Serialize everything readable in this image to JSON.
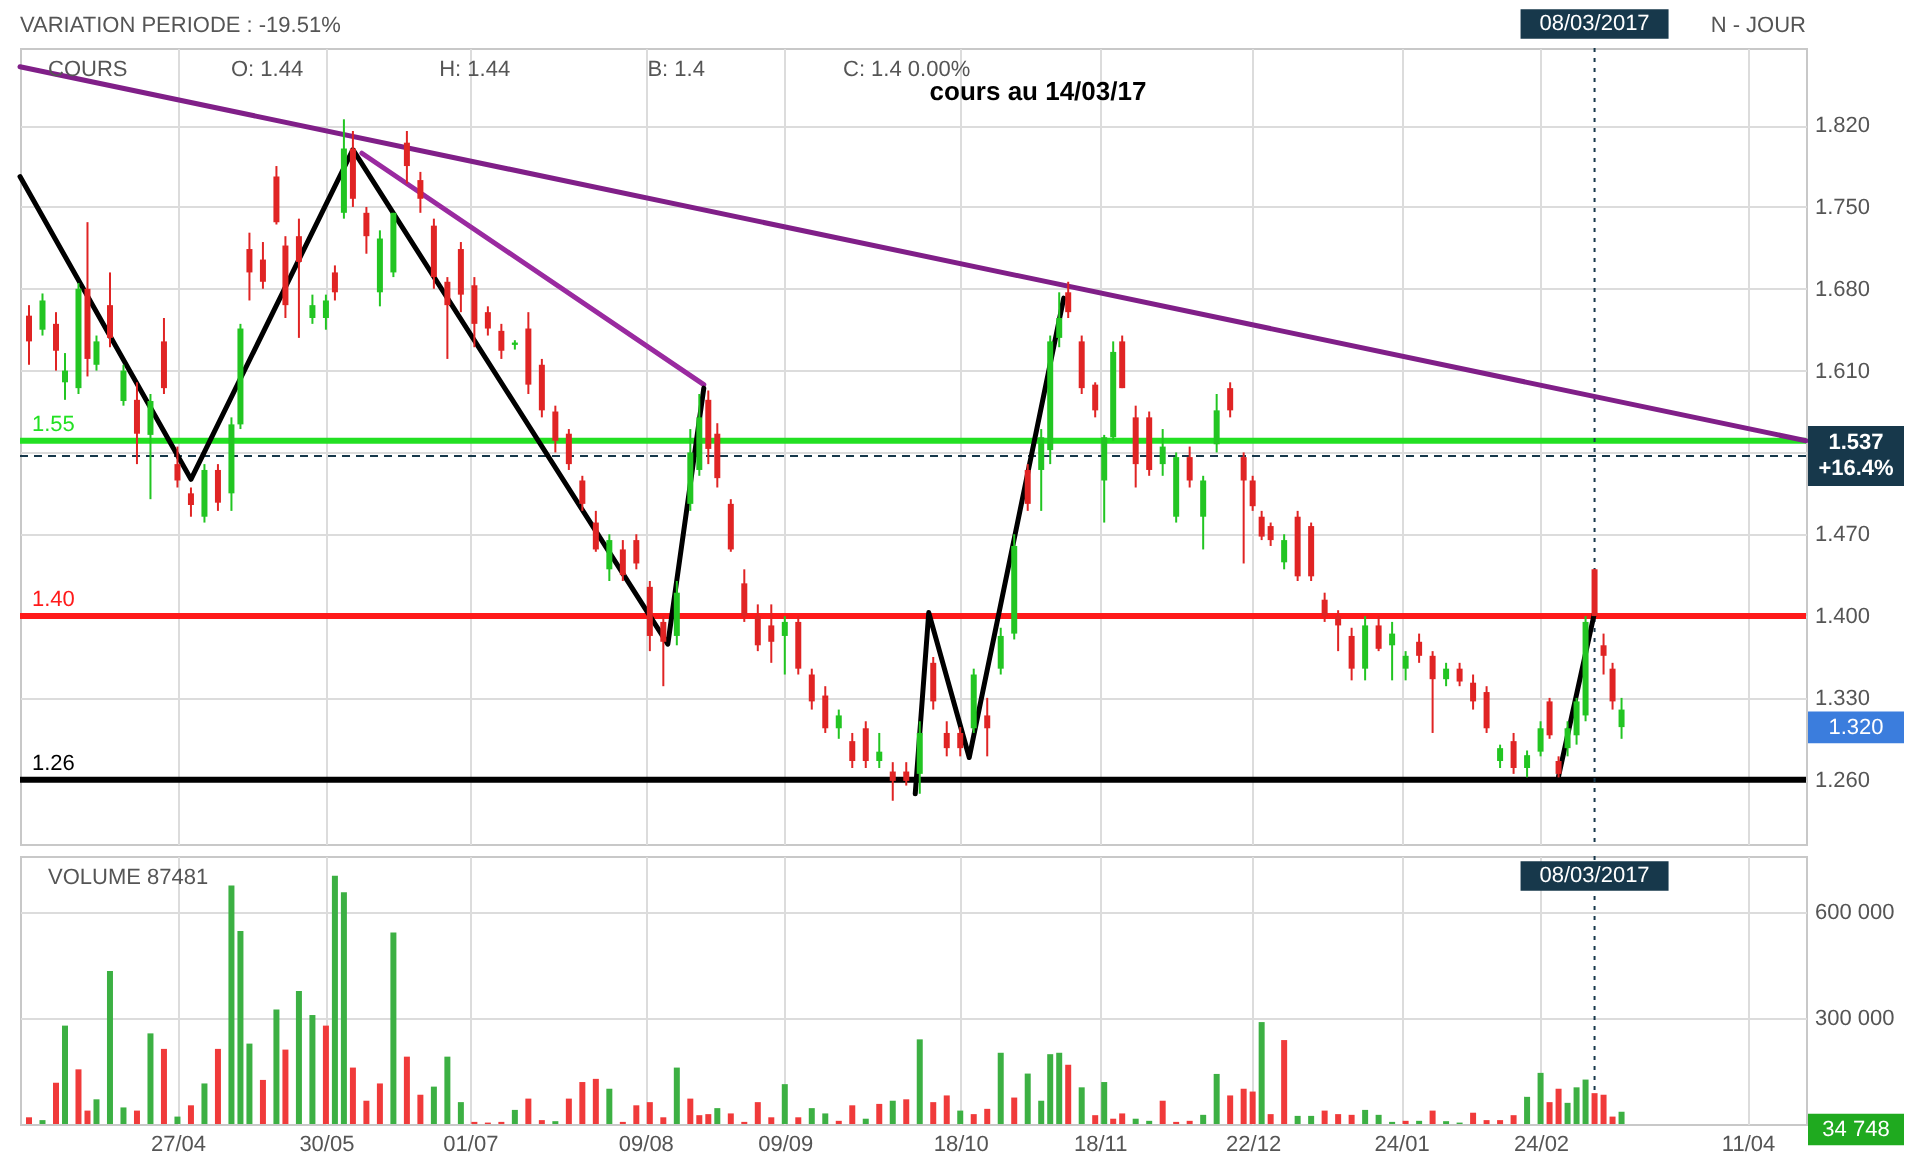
{
  "chart_data": [
    {
      "type": "candlestick",
      "title": "cours au 14/03/17",
      "annotations": [
        "VARIATION PERIODE : -19.51%",
        "COURS",
        "O: 1.44",
        "H: 1.44",
        "B: 1.4",
        "C: 1.4 0.00%",
        "N - JOUR",
        "1.320"
      ],
      "x": [
        "2016-03-25",
        "2016-03-28",
        "2016-03-31",
        "2016-04-02",
        "2016-04-05",
        "2016-04-07",
        "2016-04-09",
        "2016-04-12",
        "2016-04-15",
        "2016-04-18",
        "2016-04-21",
        "2016-04-24",
        "2016-04-27",
        "2016-04-30",
        "2016-05-03",
        "2016-05-06",
        "2016-05-09",
        "2016-05-11",
        "2016-05-13",
        "2016-05-16",
        "2016-05-19",
        "2016-05-21",
        "2016-05-24",
        "2016-05-27",
        "2016-05-30",
        "2016-06-01",
        "2016-06-03",
        "2016-06-05",
        "2016-06-08",
        "2016-06-11",
        "2016-06-14",
        "2016-06-17",
        "2016-06-20",
        "2016-06-23",
        "2016-06-26",
        "2016-06-29",
        "2016-07-02",
        "2016-07-05",
        "2016-07-08",
        "2016-07-11",
        "2016-07-14",
        "2016-07-17",
        "2016-07-20",
        "2016-07-23",
        "2016-07-26",
        "2016-07-29",
        "2016-08-01",
        "2016-08-04",
        "2016-08-07",
        "2016-08-10",
        "2016-08-13",
        "2016-08-16",
        "2016-08-19",
        "2016-08-21",
        "2016-08-23",
        "2016-08-25",
        "2016-08-28",
        "2016-08-31",
        "2016-09-03",
        "2016-09-06",
        "2016-09-09",
        "2016-09-12",
        "2016-09-15",
        "2016-09-18",
        "2016-09-21",
        "2016-09-24",
        "2016-09-27",
        "2016-09-30",
        "2016-10-03",
        "2016-10-06",
        "2016-10-09",
        "2016-10-12",
        "2016-10-15",
        "2016-10-18",
        "2016-10-21",
        "2016-10-24",
        "2016-10-27",
        "2016-10-30",
        "2016-11-02",
        "2016-11-05",
        "2016-11-07",
        "2016-11-09",
        "2016-11-11",
        "2016-11-14",
        "2016-11-17",
        "2016-11-19",
        "2016-11-21",
        "2016-11-23",
        "2016-11-26",
        "2016-11-29",
        "2016-12-02",
        "2016-12-05",
        "2016-12-08",
        "2016-12-11",
        "2016-12-14",
        "2016-12-17",
        "2016-12-20",
        "2016-12-22",
        "2016-12-24",
        "2016-12-26",
        "2016-12-29",
        "2017-01-01",
        "2017-01-04",
        "2017-01-07",
        "2017-01-10",
        "2017-01-13",
        "2017-01-16",
        "2017-01-19",
        "2017-01-22",
        "2017-01-25",
        "2017-01-28",
        "2017-01-31",
        "2017-02-03",
        "2017-02-06",
        "2017-02-09",
        "2017-02-12",
        "2017-02-15",
        "2017-02-18",
        "2017-02-21",
        "2017-02-24",
        "2017-02-26",
        "2017-02-28",
        "2017-03-02",
        "2017-03-04",
        "2017-03-06",
        "2017-03-08",
        "2017-03-10",
        "2017-03-12",
        "2017-03-14"
      ],
      "ohlc": [
        [
          1.657,
          1.666,
          1.615,
          1.635
        ],
        [
          1.645,
          1.676,
          1.64,
          1.67
        ],
        [
          1.65,
          1.66,
          1.61,
          1.627
        ],
        [
          1.6,
          1.625,
          1.585,
          1.61
        ],
        [
          1.595,
          1.685,
          1.59,
          1.68
        ],
        [
          1.68,
          1.737,
          1.605,
          1.62
        ],
        [
          1.615,
          1.64,
          1.61,
          1.635
        ],
        [
          1.666,
          1.694,
          1.63,
          1.638
        ],
        [
          1.584,
          1.615,
          1.58,
          1.61
        ],
        [
          1.585,
          1.6,
          1.53,
          1.556
        ],
        [
          1.555,
          1.59,
          1.5,
          1.584
        ],
        [
          1.635,
          1.655,
          1.59,
          1.595
        ],
        [
          1.53,
          1.545,
          1.51,
          1.516
        ],
        [
          1.505,
          1.51,
          1.485,
          1.495
        ],
        [
          1.485,
          1.53,
          1.48,
          1.525
        ],
        [
          1.525,
          1.53,
          1.49,
          1.497
        ],
        [
          1.505,
          1.57,
          1.49,
          1.564
        ],
        [
          1.564,
          1.65,
          1.56,
          1.646
        ],
        [
          1.714,
          1.728,
          1.67,
          1.694
        ],
        [
          1.705,
          1.72,
          1.68,
          1.686
        ],
        [
          1.776,
          1.785,
          1.735,
          1.737
        ],
        [
          1.717,
          1.725,
          1.655,
          1.666
        ],
        [
          1.725,
          1.74,
          1.638,
          1.703
        ],
        [
          1.655,
          1.675,
          1.65,
          1.666
        ],
        [
          1.655,
          1.675,
          1.645,
          1.67
        ],
        [
          1.694,
          1.7,
          1.67,
          1.677
        ],
        [
          1.745,
          1.825,
          1.74,
          1.8
        ],
        [
          1.8,
          1.815,
          1.75,
          1.757
        ],
        [
          1.745,
          1.75,
          1.71,
          1.725
        ],
        [
          1.677,
          1.73,
          1.665,
          1.723
        ],
        [
          1.694,
          1.745,
          1.69,
          1.745
        ],
        [
          1.805,
          1.815,
          1.77,
          1.785
        ],
        [
          1.773,
          1.78,
          1.745,
          1.757
        ],
        [
          1.734,
          1.74,
          1.68,
          1.69
        ],
        [
          1.686,
          1.69,
          1.62,
          1.666
        ],
        [
          1.714,
          1.72,
          1.66,
          1.675
        ],
        [
          1.683,
          1.69,
          1.63,
          1.65
        ],
        [
          1.66,
          1.665,
          1.64,
          1.646
        ],
        [
          1.644,
          1.65,
          1.62,
          1.627
        ],
        [
          1.632,
          1.636,
          1.628,
          1.634
        ],
        [
          1.646,
          1.66,
          1.59,
          1.598
        ],
        [
          1.615,
          1.62,
          1.57,
          1.576
        ],
        [
          1.575,
          1.58,
          1.54,
          1.55
        ],
        [
          1.556,
          1.56,
          1.525,
          1.53
        ],
        [
          1.516,
          1.52,
          1.49,
          1.496
        ],
        [
          1.48,
          1.49,
          1.455,
          1.457
        ],
        [
          1.44,
          1.47,
          1.43,
          1.465
        ],
        [
          1.457,
          1.465,
          1.43,
          1.435
        ],
        [
          1.465,
          1.47,
          1.44,
          1.445
        ],
        [
          1.425,
          1.43,
          1.37,
          1.383
        ],
        [
          1.395,
          1.4,
          1.34,
          1.378
        ],
        [
          1.383,
          1.43,
          1.375,
          1.42
        ],
        [
          1.496,
          1.56,
          1.49,
          1.54
        ],
        [
          1.525,
          1.59,
          1.52,
          1.57
        ],
        [
          1.585,
          1.593,
          1.53,
          1.543
        ],
        [
          1.556,
          1.565,
          1.51,
          1.518
        ],
        [
          1.496,
          1.5,
          1.455,
          1.457
        ],
        [
          1.428,
          1.44,
          1.395,
          1.4
        ],
        [
          1.4,
          1.41,
          1.37,
          1.375
        ],
        [
          1.392,
          1.41,
          1.36,
          1.378
        ],
        [
          1.383,
          1.4,
          1.35,
          1.395
        ],
        [
          1.395,
          1.4,
          1.35,
          1.355
        ],
        [
          1.35,
          1.355,
          1.32,
          1.327
        ],
        [
          1.332,
          1.34,
          1.3,
          1.304
        ],
        [
          1.304,
          1.32,
          1.295,
          1.315
        ],
        [
          1.293,
          1.3,
          1.27,
          1.276
        ],
        [
          1.304,
          1.31,
          1.27,
          1.276
        ],
        [
          1.276,
          1.3,
          1.27,
          1.284
        ],
        [
          1.267,
          1.275,
          1.242,
          1.259
        ],
        [
          1.267,
          1.275,
          1.255,
          1.259
        ],
        [
          1.265,
          1.31,
          1.248,
          1.3
        ],
        [
          1.36,
          1.365,
          1.32,
          1.327
        ],
        [
          1.3,
          1.31,
          1.28,
          1.287
        ],
        [
          1.3,
          1.305,
          1.28,
          1.287
        ],
        [
          1.304,
          1.355,
          1.3,
          1.35
        ],
        [
          1.315,
          1.33,
          1.28,
          1.304
        ],
        [
          1.355,
          1.39,
          1.35,
          1.383
        ],
        [
          1.385,
          1.47,
          1.38,
          1.46
        ],
        [
          1.525,
          1.53,
          1.49,
          1.496
        ],
        [
          1.525,
          1.56,
          1.49,
          1.553
        ],
        [
          1.542,
          1.64,
          1.53,
          1.635
        ],
        [
          1.638,
          1.677,
          1.63,
          1.655
        ],
        [
          1.677,
          1.686,
          1.655,
          1.66
        ],
        [
          1.635,
          1.64,
          1.59,
          1.595
        ],
        [
          1.598,
          1.6,
          1.57,
          1.576
        ],
        [
          1.516,
          1.555,
          1.48,
          1.553
        ],
        [
          1.553,
          1.635,
          1.55,
          1.626
        ],
        [
          1.635,
          1.64,
          1.595,
          1.595
        ],
        [
          1.57,
          1.58,
          1.51,
          1.53
        ],
        [
          1.57,
          1.575,
          1.52,
          1.525
        ],
        [
          1.53,
          1.56,
          1.52,
          1.545
        ],
        [
          1.485,
          1.54,
          1.48,
          1.536
        ],
        [
          1.536,
          1.545,
          1.51,
          1.516
        ],
        [
          1.485,
          1.52,
          1.457,
          1.516
        ],
        [
          1.547,
          1.59,
          1.54,
          1.576
        ],
        [
          1.595,
          1.6,
          1.57,
          1.576
        ],
        [
          1.536,
          1.54,
          1.445,
          1.516
        ],
        [
          1.516,
          1.52,
          1.49,
          1.494
        ],
        [
          1.485,
          1.49,
          1.465,
          1.468
        ],
        [
          1.477,
          1.48,
          1.46,
          1.465
        ],
        [
          1.446,
          1.47,
          1.44,
          1.465
        ],
        [
          1.485,
          1.49,
          1.43,
          1.434
        ],
        [
          1.477,
          1.48,
          1.43,
          1.434
        ],
        [
          1.414,
          1.42,
          1.395,
          1.4
        ],
        [
          1.4,
          1.405,
          1.37,
          1.392
        ],
        [
          1.383,
          1.39,
          1.345,
          1.355
        ],
        [
          1.355,
          1.4,
          1.345,
          1.392
        ],
        [
          1.392,
          1.4,
          1.37,
          1.372
        ],
        [
          1.375,
          1.395,
          1.345,
          1.385
        ],
        [
          1.355,
          1.37,
          1.345,
          1.366
        ],
        [
          1.378,
          1.385,
          1.36,
          1.366
        ],
        [
          1.366,
          1.37,
          1.3,
          1.346
        ],
        [
          1.346,
          1.36,
          1.34,
          1.355
        ],
        [
          1.355,
          1.36,
          1.34,
          1.344
        ],
        [
          1.343,
          1.35,
          1.32,
          1.327
        ],
        [
          1.335,
          1.34,
          1.3,
          1.304
        ],
        [
          1.276,
          1.29,
          1.27,
          1.287
        ],
        [
          1.293,
          1.3,
          1.265,
          1.27
        ],
        [
          1.27,
          1.285,
          1.262,
          1.281
        ],
        [
          1.284,
          1.31,
          1.28,
          1.304
        ],
        [
          1.327,
          1.33,
          1.295,
          1.298
        ],
        [
          1.276,
          1.28,
          1.262,
          1.265
        ],
        [
          1.287,
          1.31,
          1.28,
          1.304
        ],
        [
          1.298,
          1.33,
          1.29,
          1.327
        ],
        [
          1.315,
          1.4,
          1.31,
          1.395
        ],
        [
          1.44,
          1.44,
          1.4,
          1.4
        ],
        [
          1.375,
          1.385,
          1.35,
          1.366
        ],
        [
          1.355,
          1.36,
          1.32,
          1.327
        ],
        [
          1.305,
          1.33,
          1.295,
          1.32
        ]
      ],
      "colors": [
        "#e02424",
        "#22c522",
        "#e02424",
        "#22c522",
        "#22c522",
        "#e02424",
        "#22c522",
        "#e02424",
        "#22c522",
        "#e02424",
        "#22c522",
        "#e02424",
        "#e02424",
        "#e02424",
        "#22c522",
        "#e02424",
        "#22c522",
        "#22c522",
        "#e02424",
        "#e02424",
        "#e02424",
        "#e02424",
        "#e02424",
        "#22c522",
        "#22c522",
        "#e02424",
        "#22c522",
        "#e02424",
        "#e02424",
        "#22c522",
        "#22c522",
        "#e02424",
        "#e02424",
        "#e02424",
        "#e02424",
        "#e02424",
        "#e02424",
        "#e02424",
        "#e02424",
        "#22c522",
        "#e02424",
        "#e02424",
        "#e02424",
        "#e02424",
        "#e02424",
        "#e02424",
        "#22c522",
        "#e02424",
        "#e02424",
        "#e02424",
        "#e02424",
        "#22c522",
        "#22c522",
        "#22c522",
        "#e02424",
        "#e02424",
        "#e02424",
        "#e02424",
        "#e02424",
        "#e02424",
        "#22c522",
        "#e02424",
        "#e02424",
        "#e02424",
        "#22c522",
        "#e02424",
        "#e02424",
        "#22c522",
        "#e02424",
        "#e02424",
        "#22c522",
        "#e02424",
        "#e02424",
        "#e02424",
        "#22c522",
        "#e02424",
        "#22c522",
        "#22c522",
        "#e02424",
        "#22c522",
        "#22c522",
        "#22c522",
        "#e02424",
        "#e02424",
        "#e02424",
        "#22c522",
        "#22c522",
        "#e02424",
        "#e02424",
        "#e02424",
        "#22c522",
        "#22c522",
        "#e02424",
        "#22c522",
        "#22c522",
        "#e02424",
        "#e02424",
        "#e02424",
        "#e02424",
        "#e02424",
        "#22c522",
        "#e02424",
        "#e02424",
        "#e02424",
        "#e02424",
        "#e02424",
        "#22c522",
        "#e02424",
        "#22c522",
        "#22c522",
        "#e02424",
        "#e02424",
        "#22c522",
        "#e02424",
        "#e02424",
        "#e02424",
        "#22c522",
        "#e02424",
        "#22c522",
        "#22c522",
        "#e02424",
        "#e02424",
        "#22c522",
        "#22c522",
        "#22c522",
        "#e02424",
        "#e02424",
        "#e02424",
        "#22c522"
      ],
      "xlim": [
        "2016-03-23",
        "2017-04-24"
      ],
      "xticks": [
        {
          "value": "2016-04-27",
          "label": null
        },
        {
          "value": "2016-05-30",
          "label": null
        },
        {
          "value": "2016-07-01",
          "label": null
        },
        {
          "value": "2016-08-09",
          "label": null
        },
        {
          "value": "2016-09-09",
          "label": null
        },
        {
          "value": "2016-10-18",
          "label": null
        },
        {
          "value": "2016-11-18",
          "label": null
        },
        {
          "value": "2016-12-22",
          "label": null
        },
        {
          "value": "2017-01-24",
          "label": null
        },
        {
          "value": "2017-02-24",
          "label": null
        },
        {
          "value": "2017-04-11",
          "label": null
        }
      ],
      "ylim": [
        1.205,
        1.886
      ],
      "yticks": [
        {
          "value": 1.26,
          "label": "1.260"
        },
        {
          "value": 1.33,
          "label": "1.330"
        },
        {
          "value": 1.4,
          "label": "1.400"
        },
        {
          "value": 1.47,
          "label": "1.470"
        },
        {
          "value": 1.54,
          "label": null
        },
        {
          "value": 1.61,
          "label": "1.610"
        },
        {
          "value": 1.68,
          "label": "1.680"
        },
        {
          "value": 1.75,
          "label": "1.750"
        },
        {
          "value": 1.82,
          "label": "1.820"
        }
      ],
      "grid": true,
      "tick_labels": "y",
      "series": [
        {
          "type": "line",
          "color": "#801f88",
          "x": [
            "2016-03-23",
            "2017-04-24"
          ],
          "values": [
            1.87,
            1.55
          ]
        },
        {
          "type": "line",
          "color": "#9a2aa0",
          "x": [
            "2016-06-07",
            "2016-08-22"
          ],
          "values": [
            1.796,
            1.598
          ]
        },
        {
          "type": "line",
          "color": "#000000",
          "x": [
            "2016-03-23",
            "2016-04-30",
            "2016-06-05",
            "2016-08-14",
            "2016-08-22"
          ],
          "values": [
            1.776,
            1.517,
            1.799,
            1.376,
            1.595
          ]
        },
        {
          "type": "line",
          "color": "#000000",
          "x": [
            "2016-10-08",
            "2016-10-11",
            "2016-10-20",
            "2016-11-10"
          ],
          "values": [
            1.248,
            1.403,
            1.279,
            1.672
          ]
        },
        {
          "type": "line",
          "color": "#000000",
          "x": [
            "2017-02-28",
            "2017-03-08"
          ],
          "values": [
            1.263,
            1.403
          ]
        }
      ],
      "ref_lines": [
        {
          "axis": "y",
          "value": 1.55,
          "label": "1.55",
          "color": "#22e022",
          "line_style": "solid"
        },
        {
          "axis": "y",
          "value": 1.4,
          "label": "1.40",
          "color": "#ff1a1a",
          "line_style": "solid"
        },
        {
          "axis": "y",
          "value": 1.26,
          "label": "1.26",
          "color": "#000000",
          "line_style": "solid"
        },
        {
          "axis": "y",
          "value": 1.537,
          "label": "1.537 +16.4%",
          "color": "#17384b",
          "line_style": "dashed"
        },
        {
          "axis": "x",
          "value": "2017-03-08",
          "label": "08/03/2017",
          "color": "#17384b",
          "line_style": "dotted"
        }
      ]
    },
    {
      "type": "bar",
      "annotations": [
        "VOLUME 87481",
        "34 748"
      ],
      "x": [
        "2016-03-25",
        "2016-03-28",
        "2016-03-31",
        "2016-04-02",
        "2016-04-05",
        "2016-04-07",
        "2016-04-09",
        "2016-04-12",
        "2016-04-15",
        "2016-04-18",
        "2016-04-21",
        "2016-04-24",
        "2016-04-27",
        "2016-04-30",
        "2016-05-03",
        "2016-05-06",
        "2016-05-09",
        "2016-05-11",
        "2016-05-13",
        "2016-05-16",
        "2016-05-19",
        "2016-05-21",
        "2016-05-24",
        "2016-05-27",
        "2016-05-30",
        "2016-06-01",
        "2016-06-03",
        "2016-06-05",
        "2016-06-08",
        "2016-06-11",
        "2016-06-14",
        "2016-06-17",
        "2016-06-20",
        "2016-06-23",
        "2016-06-26",
        "2016-06-29",
        "2016-07-02",
        "2016-07-05",
        "2016-07-08",
        "2016-07-11",
        "2016-07-14",
        "2016-07-17",
        "2016-07-20",
        "2016-07-23",
        "2016-07-26",
        "2016-07-29",
        "2016-08-01",
        "2016-08-04",
        "2016-08-07",
        "2016-08-10",
        "2016-08-13",
        "2016-08-16",
        "2016-08-19",
        "2016-08-21",
        "2016-08-23",
        "2016-08-25",
        "2016-08-28",
        "2016-08-31",
        "2016-09-03",
        "2016-09-06",
        "2016-09-09",
        "2016-09-12",
        "2016-09-15",
        "2016-09-18",
        "2016-09-21",
        "2016-09-24",
        "2016-09-27",
        "2016-09-30",
        "2016-10-03",
        "2016-10-06",
        "2016-10-09",
        "2016-10-12",
        "2016-10-15",
        "2016-10-18",
        "2016-10-21",
        "2016-10-24",
        "2016-10-27",
        "2016-10-30",
        "2016-11-02",
        "2016-11-05",
        "2016-11-07",
        "2016-11-09",
        "2016-11-11",
        "2016-11-14",
        "2016-11-17",
        "2016-11-19",
        "2016-11-21",
        "2016-11-23",
        "2016-11-26",
        "2016-11-29",
        "2016-12-02",
        "2016-12-05",
        "2016-12-08",
        "2016-12-11",
        "2016-12-14",
        "2016-12-17",
        "2016-12-20",
        "2016-12-22",
        "2016-12-24",
        "2016-12-26",
        "2016-12-29",
        "2017-01-01",
        "2017-01-04",
        "2017-01-07",
        "2017-01-10",
        "2017-01-13",
        "2017-01-16",
        "2017-01-19",
        "2017-01-22",
        "2017-01-25",
        "2017-01-28",
        "2017-01-31",
        "2017-02-03",
        "2017-02-06",
        "2017-02-09",
        "2017-02-12",
        "2017-02-15",
        "2017-02-18",
        "2017-02-21",
        "2017-02-24",
        "2017-02-26",
        "2017-02-28",
        "2017-03-02",
        "2017-03-04",
        "2017-03-06",
        "2017-03-08",
        "2017-03-10",
        "2017-03-12",
        "2017-03-14"
      ],
      "values": [
        19000,
        11000,
        117000,
        279000,
        155000,
        38000,
        70000,
        434000,
        47000,
        38000,
        257000,
        213000,
        21000,
        53000,
        115000,
        213000,
        676000,
        547000,
        228000,
        125000,
        325000,
        211000,
        377000,
        309000,
        279000,
        704000,
        657000,
        160000,
        66000,
        115000,
        543000,
        191000,
        83000,
        106000,
        191000,
        62000,
        6000,
        4000,
        6000,
        40000,
        72000,
        11000,
        8000,
        72000,
        119000,
        128000,
        100000,
        6000,
        53000,
        62000,
        19000,
        160000,
        72000,
        25000,
        28000,
        45000,
        30000,
        6000,
        62000,
        19000,
        113000,
        19000,
        45000,
        30000,
        9000,
        53000,
        15000,
        57000,
        66000,
        70000,
        240000,
        62000,
        81000,
        38000,
        28000,
        43000,
        202000,
        75000,
        143000,
        66000,
        198000,
        202000,
        168000,
        104000,
        25000,
        119000,
        15000,
        30000,
        15000,
        9000,
        66000,
        6000,
        9000,
        26000,
        142000,
        81000,
        100000,
        92000,
        289000,
        28000,
        238000,
        23000,
        23000,
        38000,
        28000,
        26000,
        40000,
        26000,
        6000,
        9000,
        9000,
        38000,
        8000,
        4000,
        32000,
        11000,
        11000,
        25000,
        77000,
        145000,
        62000,
        100000,
        60000,
        104000,
        126000,
        87481,
        83000,
        21000,
        34748
      ],
      "colors": [
        "#f03a3a",
        "#3cb043",
        "#f03a3a",
        "#3cb043",
        "#f03a3a",
        "#f03a3a",
        "#3cb043",
        "#3cb043",
        "#3cb043",
        "#f03a3a",
        "#3cb043",
        "#f03a3a",
        "#3cb043",
        "#f03a3a",
        "#3cb043",
        "#f03a3a",
        "#3cb043",
        "#3cb043",
        "#3cb043",
        "#f03a3a",
        "#3cb043",
        "#f03a3a",
        "#3cb043",
        "#3cb043",
        "#f03a3a",
        "#3cb043",
        "#3cb043",
        "#f03a3a",
        "#f03a3a",
        "#f03a3a",
        "#3cb043",
        "#f03a3a",
        "#f03a3a",
        "#3cb043",
        "#3cb043",
        "#3cb043",
        "#f03a3a",
        "#f03a3a",
        "#f03a3a",
        "#3cb043",
        "#f03a3a",
        "#f03a3a",
        "#3cb043",
        "#f03a3a",
        "#f03a3a",
        "#f03a3a",
        "#3cb043",
        "#f03a3a",
        "#f03a3a",
        "#f03a3a",
        "#f03a3a",
        "#3cb043",
        "#f03a3a",
        "#f03a3a",
        "#f03a3a",
        "#3cb043",
        "#f03a3a",
        "#f03a3a",
        "#f03a3a",
        "#f03a3a",
        "#3cb043",
        "#f03a3a",
        "#3cb043",
        "#3cb043",
        "#f03a3a",
        "#f03a3a",
        "#3cb043",
        "#f03a3a",
        "#3cb043",
        "#f03a3a",
        "#3cb043",
        "#f03a3a",
        "#f03a3a",
        "#3cb043",
        "#f03a3a",
        "#f03a3a",
        "#3cb043",
        "#f03a3a",
        "#3cb043",
        "#3cb043",
        "#3cb043",
        "#3cb043",
        "#f03a3a",
        "#3cb043",
        "#f03a3a",
        "#3cb043",
        "#f03a3a",
        "#f03a3a",
        "#3cb043",
        "#3cb043",
        "#f03a3a",
        "#f03a3a",
        "#f03a3a",
        "#3cb043",
        "#3cb043",
        "#f03a3a",
        "#f03a3a",
        "#f03a3a",
        "#3cb043",
        "#f03a3a",
        "#f03a3a",
        "#3cb043",
        "#3cb043",
        "#f03a3a",
        "#f03a3a",
        "#f03a3a",
        "#3cb043",
        "#3cb043",
        "#3cb043",
        "#f03a3a",
        "#3cb043",
        "#f03a3a",
        "#3cb043",
        "#3cb043",
        "#f03a3a",
        "#f03a3a",
        "#f03a3a",
        "#f03a3a",
        "#3cb043",
        "#3cb043",
        "#f03a3a",
        "#f03a3a",
        "#3cb043",
        "#3cb043",
        "#3cb043",
        "#f03a3a",
        "#f03a3a",
        "#f03a3a",
        "#3cb043"
      ],
      "xlim": [
        "2016-03-23",
        "2017-04-24"
      ],
      "xticks": [
        {
          "value": "2016-04-27",
          "label": "27/04"
        },
        {
          "value": "2016-05-30",
          "label": "30/05"
        },
        {
          "value": "2016-07-01",
          "label": "01/07"
        },
        {
          "value": "2016-08-09",
          "label": "09/08"
        },
        {
          "value": "2016-09-09",
          "label": "09/09"
        },
        {
          "value": "2016-10-18",
          "label": "18/10"
        },
        {
          "value": "2016-11-18",
          "label": "18/11"
        },
        {
          "value": "2016-12-22",
          "label": "22/12"
        },
        {
          "value": "2017-01-24",
          "label": "24/01"
        },
        {
          "value": "2017-02-24",
          "label": "24/02"
        },
        {
          "value": "2017-04-11",
          "label": "11/04"
        }
      ],
      "ylim": [
        0,
        760000
      ],
      "yticks": [
        {
          "value": 300000,
          "label": "300 000"
        },
        {
          "value": 600000,
          "label": "600 000"
        }
      ],
      "grid": true,
      "ref_lines": [
        {
          "axis": "x",
          "value": "2017-03-08",
          "label": "08/03/2017",
          "color": "#17384b",
          "line_style": "dotted"
        }
      ]
    }
  ]
}
